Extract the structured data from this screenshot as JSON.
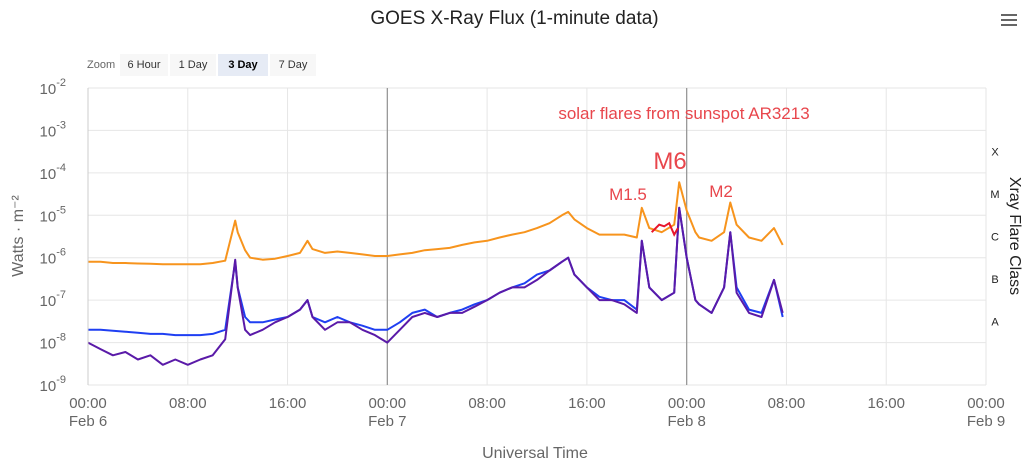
{
  "title": "GOES X-Ray Flux (1-minute data)",
  "zoom": {
    "label": "Zoom",
    "buttons": [
      "6 Hour",
      "1 Day",
      "3 Day",
      "7 Day"
    ],
    "active": "3 Day"
  },
  "colors": {
    "long_channel": "#f7941d",
    "long_channel_flare": "#e8162c",
    "short_channel": "#1f3ff2",
    "short_channel_secondary": "#5a1aa8",
    "annotation": "#e8464c",
    "grid": "#e6e6e6",
    "day_divider": "#999999"
  },
  "annotations": {
    "headline": "solar flares from sunspot AR3213",
    "flare_labels": [
      "M1.5",
      "M6",
      "M2"
    ]
  },
  "chart_data": {
    "type": "line",
    "title": "GOES X-Ray Flux (1-minute data)",
    "xlabel": "Universal Time",
    "ylabel": "Watts · m⁻²",
    "y2label": "Xray Flare Class",
    "yscale": "log",
    "ylim": [
      1e-09,
      0.01
    ],
    "xlim_hours": [
      0,
      72
    ],
    "x_unit": "hours since Feb 6 00:00 UT",
    "x_ticks": [
      {
        "hour": 0,
        "time": "00:00",
        "date": "Feb 6"
      },
      {
        "hour": 8,
        "time": "08:00",
        "date": ""
      },
      {
        "hour": 16,
        "time": "16:00",
        "date": ""
      },
      {
        "hour": 24,
        "time": "00:00",
        "date": "Feb 7"
      },
      {
        "hour": 32,
        "time": "08:00",
        "date": ""
      },
      {
        "hour": 40,
        "time": "16:00",
        "date": ""
      },
      {
        "hour": 48,
        "time": "00:00",
        "date": "Feb 8"
      },
      {
        "hour": 56,
        "time": "08:00",
        "date": ""
      },
      {
        "hour": 64,
        "time": "16:00",
        "date": ""
      },
      {
        "hour": 72,
        "time": "00:00",
        "date": "Feb 9"
      }
    ],
    "y_ticks": [
      {
        "base": "10",
        "exp": "-9",
        "value": 1e-09
      },
      {
        "base": "10",
        "exp": "-8",
        "value": 1e-08
      },
      {
        "base": "10",
        "exp": "-7",
        "value": 1e-07
      },
      {
        "base": "10",
        "exp": "-6",
        "value": 1e-06
      },
      {
        "base": "10",
        "exp": "-5",
        "value": 1e-05
      },
      {
        "base": "10",
        "exp": "-4",
        "value": 0.0001
      },
      {
        "base": "10",
        "exp": "-3",
        "value": 0.001
      },
      {
        "base": "10",
        "exp": "-2",
        "value": 0.01
      }
    ],
    "flare_classes": [
      {
        "label": "A",
        "value": 1e-08
      },
      {
        "label": "B",
        "value": 1e-07
      },
      {
        "label": "C",
        "value": 1e-06
      },
      {
        "label": "M",
        "value": 1e-05
      },
      {
        "label": "X",
        "value": 0.0001
      }
    ],
    "grid": true,
    "series": [
      {
        "color_key": "long_channel",
        "x": [
          0,
          1,
          2,
          3,
          4,
          5,
          6,
          7,
          8,
          9,
          10,
          11,
          11.8,
          12,
          12.6,
          13,
          14,
          15,
          16,
          17,
          17.6,
          18,
          19,
          20,
          21,
          22,
          23,
          24,
          25,
          26,
          27,
          28,
          29,
          30,
          31,
          32,
          33,
          34,
          35,
          36,
          37,
          38,
          38.5,
          39,
          40,
          41,
          42,
          43,
          44,
          44.4,
          45,
          46,
          47,
          47.4,
          48,
          48.7,
          49,
          50,
          51,
          51.5,
          52,
          53,
          54,
          55,
          55.7
        ],
        "y": [
          8e-07,
          8e-07,
          7.5e-07,
          7.5e-07,
          7.3e-07,
          7.2e-07,
          7e-07,
          7e-07,
          7e-07,
          7e-07,
          7.5e-07,
          8.5e-07,
          7.5e-06,
          4e-06,
          1.5e-06,
          1e-06,
          9e-07,
          9.5e-07,
          1.1e-06,
          1.3e-06,
          2.5e-06,
          1.6e-06,
          1.3e-06,
          1.4e-06,
          1.3e-06,
          1.2e-06,
          1.1e-06,
          1.1e-06,
          1.2e-06,
          1.3e-06,
          1.5e-06,
          1.6e-06,
          1.7e-06,
          2e-06,
          2.3e-06,
          2.5e-06,
          3e-06,
          3.5e-06,
          4e-06,
          5e-06,
          6.5e-06,
          1e-05,
          1.2e-05,
          8e-06,
          5e-06,
          3.5e-06,
          3.5e-06,
          3.5e-06,
          3e-06,
          1.5e-05,
          5e-06,
          4e-06,
          6e-06,
          6e-05,
          1.3e-05,
          4e-06,
          3e-06,
          2.5e-06,
          4e-06,
          2e-05,
          6e-06,
          3e-06,
          2.5e-06,
          5e-06,
          2e-06
        ]
      },
      {
        "color_key": "short_channel",
        "x": [
          0,
          1,
          2,
          3,
          4,
          5,
          6,
          7,
          8,
          9,
          10,
          11,
          11.8,
          12,
          12.6,
          13,
          14,
          15,
          16,
          17,
          17.6,
          18,
          19,
          20,
          21,
          22,
          23,
          24,
          25,
          26,
          27,
          28,
          29,
          30,
          31,
          32,
          33,
          34,
          35,
          36,
          37,
          38,
          38.5,
          39,
          40,
          41,
          42,
          43,
          44,
          44.4,
          45,
          46,
          47,
          47.4,
          48,
          48.7,
          49,
          50,
          51,
          51.5,
          52,
          53,
          54,
          55,
          55.7
        ],
        "y": [
          2e-08,
          2e-08,
          1.9e-08,
          1.8e-08,
          1.7e-08,
          1.6e-08,
          1.6e-08,
          1.5e-08,
          1.5e-08,
          1.5e-08,
          1.6e-08,
          2e-08,
          8e-07,
          2e-07,
          4e-08,
          3e-08,
          3e-08,
          3.5e-08,
          4e-08,
          6e-08,
          1e-07,
          4e-08,
          3e-08,
          4e-08,
          3e-08,
          2.5e-08,
          2e-08,
          2e-08,
          3e-08,
          5e-08,
          6e-08,
          4e-08,
          5e-08,
          6e-08,
          8e-08,
          1e-07,
          1.5e-07,
          2e-07,
          2.5e-07,
          4e-07,
          5e-07,
          8e-07,
          1e-06,
          4e-07,
          2e-07,
          1.2e-07,
          1e-07,
          1e-07,
          6e-08,
          2.5e-06,
          2e-07,
          1e-07,
          1.5e-07,
          1.5e-05,
          1e-06,
          1e-07,
          8e-08,
          5e-08,
          2e-07,
          4e-06,
          2e-07,
          6e-08,
          5e-08,
          3e-07,
          4e-08
        ]
      },
      {
        "color_key": "short_channel_secondary",
        "x": [
          0,
          1,
          2,
          3,
          4,
          5,
          6,
          7,
          8,
          9,
          10,
          11,
          11.8,
          12,
          12.6,
          13,
          14,
          15,
          16,
          17,
          17.6,
          18,
          19,
          20,
          21,
          22,
          23,
          24,
          25,
          26,
          27,
          28,
          29,
          30,
          31,
          32,
          33,
          34,
          35,
          36,
          37,
          38,
          38.5,
          39,
          40,
          41,
          42,
          43,
          44,
          44.4,
          45,
          46,
          47,
          47.4,
          48,
          48.7,
          49,
          50,
          51,
          51.5,
          52,
          53,
          54,
          55,
          55.7
        ],
        "y": [
          1e-08,
          7e-09,
          5e-09,
          6e-09,
          4e-09,
          5e-09,
          3e-09,
          4e-09,
          3e-09,
          4e-09,
          5e-09,
          1.2e-08,
          9e-07,
          2e-07,
          2e-08,
          1.5e-08,
          2e-08,
          3e-08,
          4e-08,
          6e-08,
          1e-07,
          4e-08,
          2e-08,
          3e-08,
          3e-08,
          2e-08,
          1.5e-08,
          1e-08,
          2e-08,
          4e-08,
          5e-08,
          4e-08,
          5e-08,
          5e-08,
          7e-08,
          1e-07,
          1.5e-07,
          2e-07,
          2e-07,
          3e-07,
          5e-07,
          8e-07,
          1e-06,
          4e-07,
          2e-07,
          1e-07,
          1e-07,
          8e-08,
          5e-08,
          2.5e-06,
          2e-07,
          1e-07,
          1.5e-07,
          1.5e-05,
          1e-06,
          1e-07,
          8e-08,
          5e-08,
          2e-07,
          4e-06,
          1.5e-07,
          5e-08,
          4e-08,
          3e-07,
          5e-08
        ]
      }
    ],
    "flare_segment": {
      "color_key": "long_channel_flare",
      "x": [
        45.2,
        45.8,
        46.2,
        46.6,
        47.0,
        47.3
      ],
      "y": [
        4e-06,
        6e-06,
        5.5e-06,
        6.5e-06,
        3.5e-06,
        5e-06
      ]
    }
  }
}
